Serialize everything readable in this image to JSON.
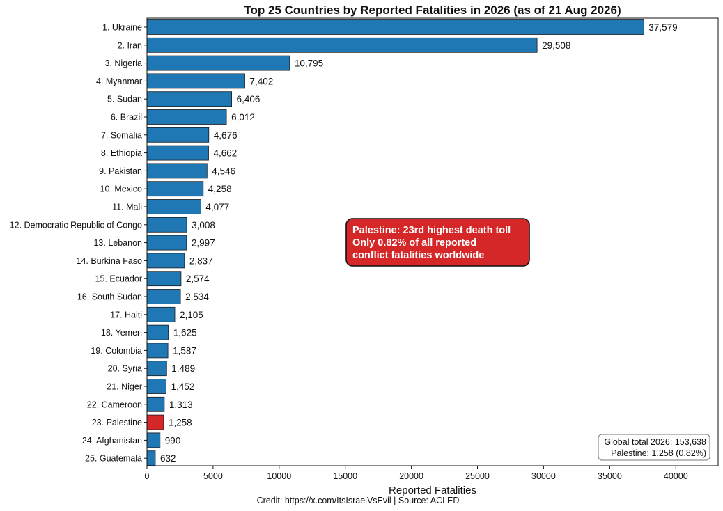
{
  "credit": "Credit: https://x.com/ItsIsraelVsEvil  |  Source: ACLED",
  "colors": {
    "bar": "#1f77b4",
    "highlight": "#d62728",
    "annotation_bg": "#d62728"
  },
  "chart_data": {
    "type": "bar",
    "orientation": "horizontal",
    "title": "Top 25 Countries by Reported Fatalities in 2026 (as of 21 Aug 2026)",
    "xlabel": "Reported Fatalities",
    "ylabel": "",
    "xlim": [
      0,
      43200
    ],
    "xticks": [
      0,
      5000,
      10000,
      15000,
      20000,
      25000,
      30000,
      35000,
      40000
    ],
    "grid": false,
    "categories": [
      "1. Ukraine",
      "2. Iran",
      "3. Nigeria",
      "4. Myanmar",
      "5. Sudan",
      "6. Brazil",
      "7. Somalia",
      "8. Ethiopia",
      "9. Pakistan",
      "10. Mexico",
      "11. Mali",
      "12. Democratic Republic of Congo",
      "13. Lebanon",
      "14. Burkina Faso",
      "15. Ecuador",
      "16. South Sudan",
      "17. Haiti",
      "18. Yemen",
      "19. Colombia",
      "20. Syria",
      "21. Niger",
      "22. Cameroon",
      "23. Palestine",
      "24. Afghanistan",
      "25. Guatemala"
    ],
    "values": [
      37579,
      29508,
      10795,
      7402,
      6406,
      6012,
      4676,
      4662,
      4546,
      4258,
      4077,
      3008,
      2997,
      2837,
      2574,
      2534,
      2105,
      1625,
      1587,
      1489,
      1452,
      1313,
      1258,
      990,
      632
    ],
    "value_labels": [
      "37,579",
      "29,508",
      "10,795",
      "7,402",
      "6,406",
      "6,012",
      "4,676",
      "4,662",
      "4,546",
      "4,258",
      "4,077",
      "3,008",
      "2,997",
      "2,837",
      "2,574",
      "2,534",
      "2,105",
      "1,625",
      "1,587",
      "1,489",
      "1,452",
      "1,313",
      "1,258",
      "990",
      "632"
    ],
    "highlight_index": 22,
    "annotation": {
      "lines": [
        "Palestine: 23rd highest death toll",
        "Only 0.82% of all reported",
        "conflict fatalities worldwide"
      ]
    },
    "summary_box": {
      "lines": [
        "Global total 2026: 153,638",
        "Palestine: 1,258 (0.82%)"
      ],
      "placement": "bottom-right"
    }
  }
}
